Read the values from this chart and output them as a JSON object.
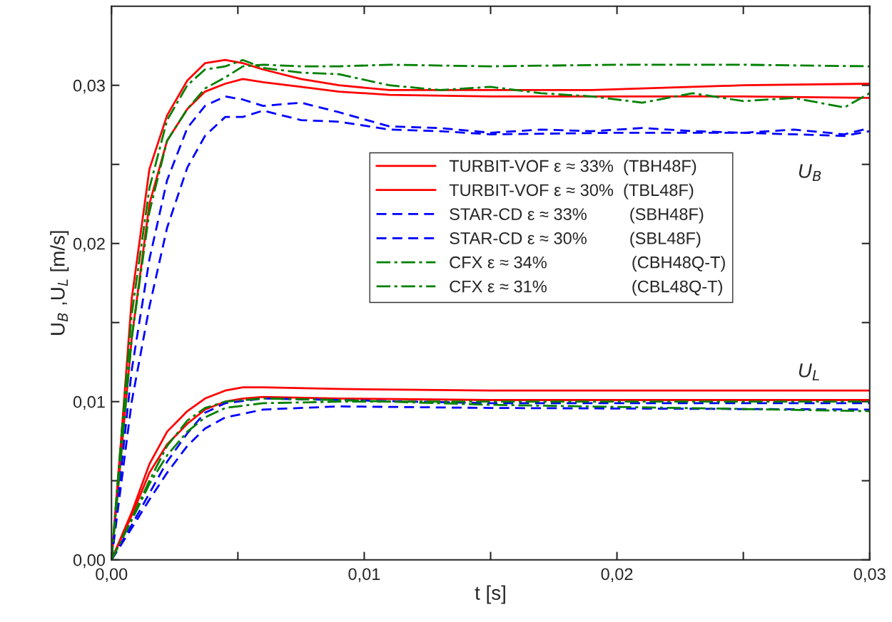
{
  "chart_data": {
    "type": "line",
    "xlabel": "t [s]",
    "ylabel": "U$_{B}$ ,U$_{L}$ [m/s]",
    "xlim": [
      0,
      0.03
    ],
    "ylim": [
      0,
      0.035
    ],
    "xticks": [
      {
        "value": 0,
        "label": "0,00"
      },
      {
        "value": 0.005,
        "label": null
      },
      {
        "value": 0.01,
        "label": "0,01"
      },
      {
        "value": 0.015,
        "label": null
      },
      {
        "value": 0.02,
        "label": "0,02"
      },
      {
        "value": 0.025,
        "label": null
      },
      {
        "value": 0.03,
        "label": "0,03"
      }
    ],
    "yticks": [
      {
        "value": 0,
        "label": "0,00"
      },
      {
        "value": 0.005,
        "label": null
      },
      {
        "value": 0.01,
        "label": "0,01"
      },
      {
        "value": 0.015,
        "label": null
      },
      {
        "value": 0.02,
        "label": "0,02"
      },
      {
        "value": 0.025,
        "label": null
      },
      {
        "value": 0.03,
        "label": "0,03"
      }
    ],
    "grid": false,
    "legend": "center",
    "marker": "none",
    "annotations": [
      "U$_{B}$",
      "U$_{L}$"
    ],
    "series": [
      {
        "name": "TURBIT-VOF ε ≈ 33%  (TBH48F)",
        "color": "#ff0000",
        "line_style": "solid",
        "x": [
          0,
          0.0004,
          0.0008,
          0.0015,
          0.0022,
          0.003,
          0.0037,
          0.0045,
          0.0052,
          0.006,
          0.0075,
          0.009,
          0.011,
          0.015,
          0.019,
          0.021,
          0.025,
          0.03
        ],
        "values": [
          0,
          0.008,
          0.0165,
          0.0247,
          0.0281,
          0.0303,
          0.0314,
          0.0316,
          0.0314,
          0.031,
          0.0304,
          0.03,
          0.0297,
          0.0297,
          0.0297,
          0.0298,
          0.03,
          0.0301
        ]
      },
      {
        "name": "TURBIT-VOF ε ≈ 30%  (TBL48F)",
        "color": "#ff0000",
        "line_style": "solid",
        "x": [
          0,
          0.0004,
          0.0008,
          0.0015,
          0.0022,
          0.003,
          0.0037,
          0.0045,
          0.0052,
          0.006,
          0.0075,
          0.009,
          0.011,
          0.015,
          0.02,
          0.025,
          0.03
        ],
        "values": [
          0,
          0.007,
          0.014,
          0.0225,
          0.0265,
          0.0285,
          0.0296,
          0.0301,
          0.0304,
          0.0302,
          0.0299,
          0.0296,
          0.0294,
          0.0293,
          0.0293,
          0.0293,
          0.0292
        ]
      },
      {
        "name": "STAR-CD ε ≈ 33%         (SBH48F)",
        "color": "#0000ff",
        "line_style": "dashed",
        "x": [
          0,
          0.0004,
          0.0008,
          0.0015,
          0.0022,
          0.003,
          0.0037,
          0.0045,
          0.0052,
          0.006,
          0.0075,
          0.009,
          0.011,
          0.013,
          0.015,
          0.017,
          0.019,
          0.021,
          0.023,
          0.025,
          0.027,
          0.029,
          0.03
        ],
        "values": [
          0,
          0.006,
          0.012,
          0.019,
          0.024,
          0.0273,
          0.0287,
          0.0293,
          0.0291,
          0.0287,
          0.0289,
          0.0283,
          0.0274,
          0.0273,
          0.027,
          0.0272,
          0.0271,
          0.0273,
          0.0271,
          0.027,
          0.0272,
          0.0269,
          0.0273
        ]
      },
      {
        "name": "STAR-CD ε ≈ 30%         (SBL48F)",
        "color": "#0000ff",
        "line_style": "dashed",
        "x": [
          0,
          0.0004,
          0.0008,
          0.0015,
          0.0022,
          0.003,
          0.0037,
          0.0045,
          0.0052,
          0.006,
          0.0075,
          0.009,
          0.011,
          0.013,
          0.015,
          0.02,
          0.025,
          0.029,
          0.03
        ],
        "values": [
          0,
          0.005,
          0.01,
          0.016,
          0.021,
          0.0248,
          0.0268,
          0.028,
          0.028,
          0.0284,
          0.0278,
          0.0277,
          0.0272,
          0.0271,
          0.0269,
          0.027,
          0.027,
          0.0268,
          0.0271
        ]
      },
      {
        "name": "CFX ε ≈ 34%                  (CBH48Q-T)",
        "color": "#008000",
        "line_style": "dashdot",
        "x": [
          0,
          0.0004,
          0.0008,
          0.0015,
          0.0022,
          0.003,
          0.0037,
          0.0045,
          0.0052,
          0.006,
          0.0075,
          0.009,
          0.011,
          0.013,
          0.015,
          0.017,
          0.019,
          0.021,
          0.023,
          0.025,
          0.027,
          0.029,
          0.03
        ],
        "values": [
          0,
          0.008,
          0.0155,
          0.0235,
          0.0278,
          0.03,
          0.031,
          0.0312,
          0.0316,
          0.0311,
          0.0308,
          0.0307,
          0.03,
          0.0297,
          0.0299,
          0.0295,
          0.0293,
          0.0289,
          0.0295,
          0.029,
          0.0292,
          0.0286,
          0.0295
        ]
      },
      {
        "name": "CFX ε ≈ 31%                  (CBL48Q-T)",
        "color": "#008000",
        "line_style": "dashdot",
        "x": [
          0,
          0.0004,
          0.0008,
          0.0015,
          0.0022,
          0.003,
          0.0037,
          0.0045,
          0.0052,
          0.006,
          0.0075,
          0.009,
          0.011,
          0.015,
          0.02,
          0.025,
          0.03
        ],
        "values": [
          0,
          0.007,
          0.014,
          0.022,
          0.0265,
          0.0285,
          0.0298,
          0.0305,
          0.0312,
          0.0313,
          0.0312,
          0.0312,
          0.0313,
          0.0312,
          0.0313,
          0.0313,
          0.0312
        ]
      },
      {
        "color": "#ff0000",
        "line_style": "solid",
        "x": [
          0,
          0.0008,
          0.0015,
          0.0022,
          0.003,
          0.0037,
          0.0045,
          0.0052,
          0.006,
          0.009,
          0.015,
          0.03
        ],
        "values": [
          0,
          0.003,
          0.00605,
          0.0081,
          0.0094,
          0.0102,
          0.0107,
          0.0109,
          0.0109,
          0.0108,
          0.0107,
          0.0107
        ]
      },
      {
        "color": "#ff0000",
        "line_style": "solid",
        "x": [
          0,
          0.0008,
          0.0015,
          0.0022,
          0.003,
          0.0037,
          0.0045,
          0.0052,
          0.006,
          0.009,
          0.015,
          0.03
        ],
        "values": [
          0,
          0.0028,
          0.0055,
          0.0073,
          0.0086,
          0.0095,
          0.01,
          0.0102,
          0.0103,
          0.0102,
          0.0101,
          0.0101
        ]
      },
      {
        "color": "#0000ff",
        "line_style": "dashed",
        "x": [
          0,
          0.0008,
          0.0015,
          0.0022,
          0.003,
          0.0037,
          0.0045,
          0.006,
          0.009,
          0.015,
          0.03
        ],
        "values": [
          0,
          0.0022,
          0.0042,
          0.0062,
          0.008,
          0.0093,
          0.0099,
          0.0102,
          0.0101,
          0.0099,
          0.0099
        ]
      },
      {
        "color": "#0000ff",
        "line_style": "dashed",
        "x": [
          0,
          0.0008,
          0.0015,
          0.0022,
          0.003,
          0.0037,
          0.0045,
          0.006,
          0.009,
          0.015,
          0.03
        ],
        "values": [
          0,
          0.002,
          0.0038,
          0.0055,
          0.0072,
          0.0083,
          0.009,
          0.0095,
          0.0097,
          0.0096,
          0.0095
        ]
      },
      {
        "color": "#008000",
        "line_style": "dashdot",
        "x": [
          0,
          0.0008,
          0.0015,
          0.0022,
          0.003,
          0.0037,
          0.0045,
          0.006,
          0.009,
          0.015,
          0.03
        ],
        "values": [
          0,
          0.0026,
          0.005,
          0.0072,
          0.0088,
          0.0096,
          0.01,
          0.0102,
          0.0101,
          0.0098,
          0.0094
        ]
      },
      {
        "color": "#008000",
        "line_style": "dashdot",
        "x": [
          0,
          0.0008,
          0.0015,
          0.0022,
          0.003,
          0.0037,
          0.0045,
          0.006,
          0.009,
          0.015,
          0.03
        ],
        "values": [
          0,
          0.0025,
          0.0048,
          0.0066,
          0.0081,
          0.009,
          0.0096,
          0.0099,
          0.01,
          0.01,
          0.01
        ]
      }
    ]
  }
}
